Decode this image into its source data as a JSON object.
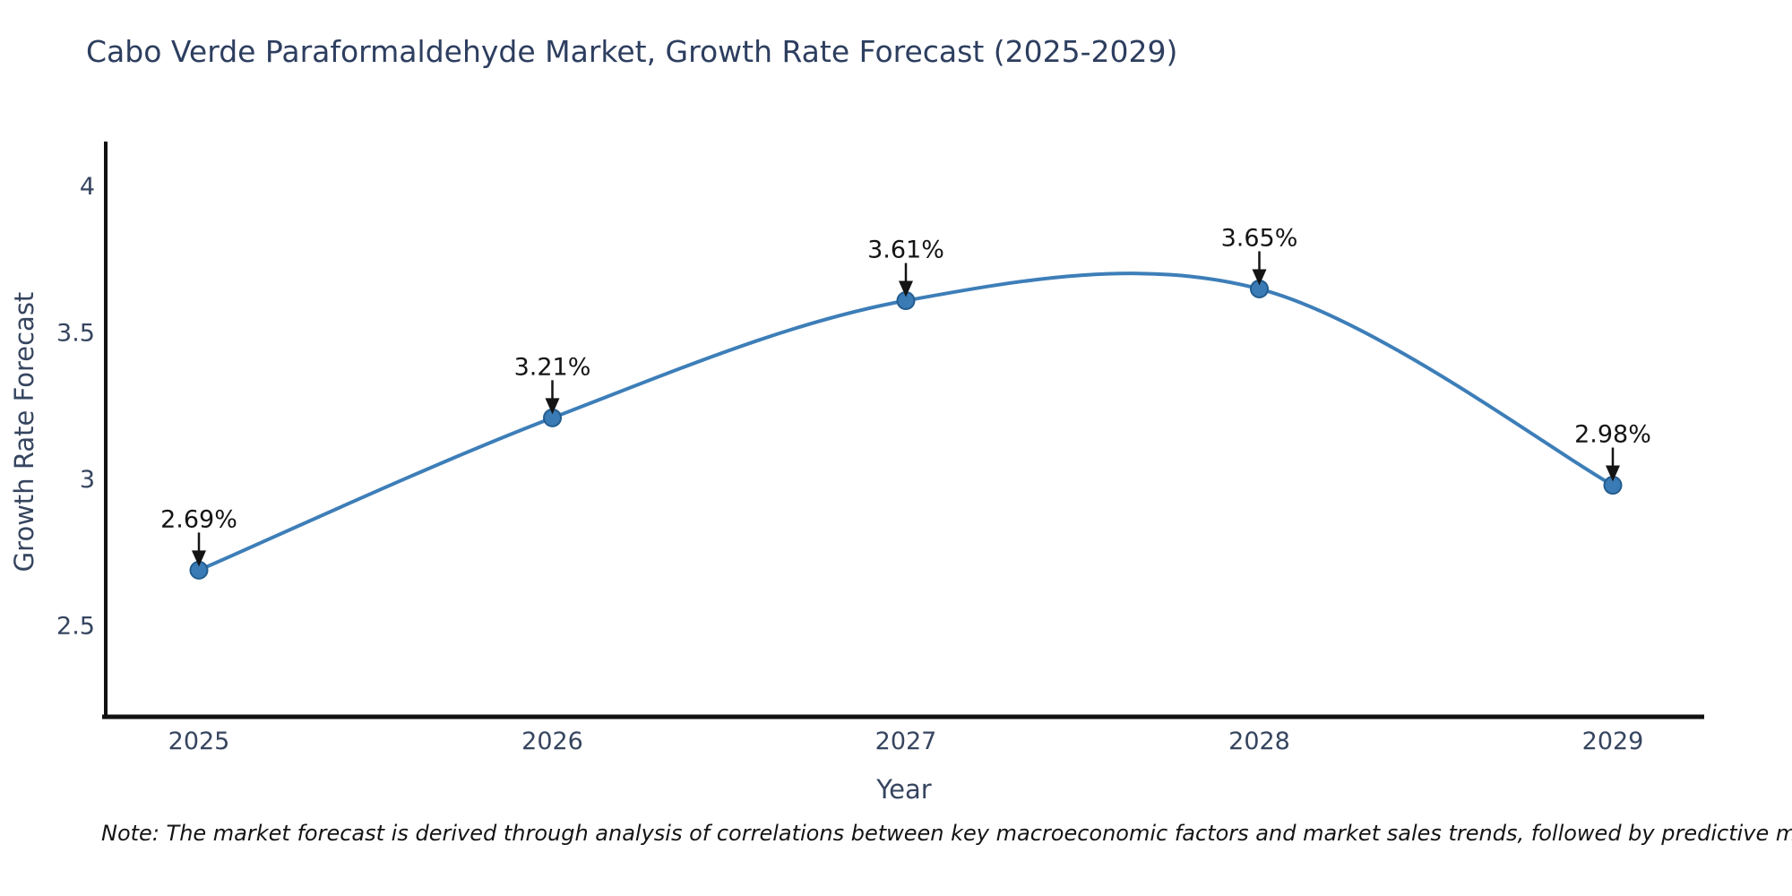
{
  "chart_data": {
    "type": "line",
    "title": "Cabo Verde Paraformaldehyde Market, Growth Rate Forecast (2025-2029)",
    "xlabel": "Year",
    "ylabel": "Growth Rate Forecast",
    "categories": [
      "2025",
      "2026",
      "2027",
      "2028",
      "2029"
    ],
    "values": [
      2.69,
      3.21,
      3.61,
      3.65,
      2.98
    ],
    "point_labels": [
      "2.69%",
      "3.21%",
      "3.61%",
      "3.65%",
      "2.98%"
    ],
    "ytick_labels": [
      "4",
      "3.5",
      "3",
      "2.5"
    ],
    "ytick_values": [
      4,
      3.5,
      3,
      2.5
    ],
    "ylim": [
      2.18,
      4.15
    ],
    "grid": false,
    "legend_position": "none",
    "line_color": "#3d7eb8",
    "marker_fill": "#3a7ab5",
    "marker_edge": "#235d8f",
    "axis_color": "#111111",
    "annotation_color": "#141414",
    "tick_label_color": "#36455f",
    "title_color": "#2d3e5f"
  },
  "note": "Note: The market forecast is derived through analysis of correlations between key macroeconomic factors and market sales trends, followed by predictive modeling to project future sales figures."
}
